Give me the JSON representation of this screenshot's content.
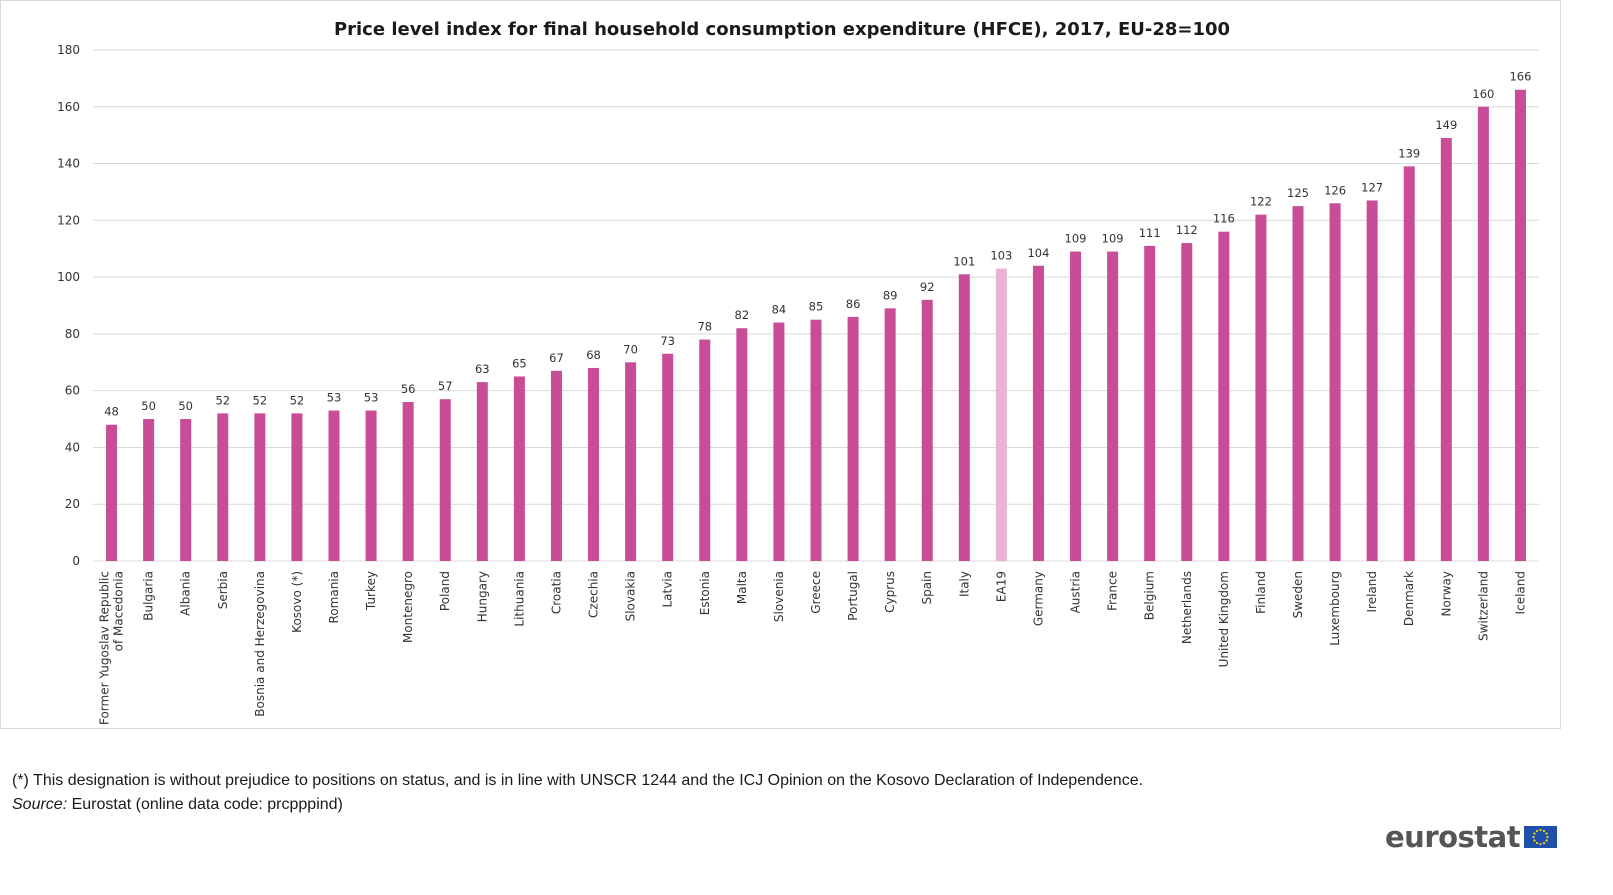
{
  "chart_data": {
    "type": "bar",
    "title": "Price level index for final household consumption expenditure (HFCE), 2017, EU-28=100",
    "xlabel": "",
    "ylabel": "",
    "ylim": [
      0,
      180
    ],
    "yticks": [
      0,
      20,
      40,
      60,
      80,
      100,
      120,
      140,
      160,
      180
    ],
    "grid": true,
    "categories": [
      [
        "Former Yugoslav Republic",
        "of Macedonia"
      ],
      [
        "Bulgaria"
      ],
      [
        "Albania"
      ],
      [
        "Serbia"
      ],
      [
        "Bosnia and Herzegovina"
      ],
      [
        "Kosovo (*)"
      ],
      [
        "Romania"
      ],
      [
        "Turkey"
      ],
      [
        "Montenegro"
      ],
      [
        "Poland"
      ],
      [
        "Hungary"
      ],
      [
        "Lithuania"
      ],
      [
        "Croatia"
      ],
      [
        "Czechia"
      ],
      [
        "Slovakia"
      ],
      [
        "Latvia"
      ],
      [
        "Estonia"
      ],
      [
        "Malta"
      ],
      [
        "Slovenia"
      ],
      [
        "Greece"
      ],
      [
        "Portugal"
      ],
      [
        "Cyprus"
      ],
      [
        "Spain"
      ],
      [
        "Italy"
      ],
      [
        "EA19"
      ],
      [
        "Germany"
      ],
      [
        "Austria"
      ],
      [
        "France"
      ],
      [
        "Belgium"
      ],
      [
        "Netherlands"
      ],
      [
        "United Kingdom"
      ],
      [
        "Finland"
      ],
      [
        "Sweden"
      ],
      [
        "Luxembourg"
      ],
      [
        "Ireland"
      ],
      [
        "Denmark"
      ],
      [
        "Norway"
      ],
      [
        "Switzerland"
      ],
      [
        "Iceland"
      ]
    ],
    "values": [
      48,
      50,
      50,
      52,
      52,
      52,
      53,
      53,
      56,
      57,
      63,
      65,
      67,
      68,
      70,
      73,
      78,
      82,
      84,
      85,
      86,
      89,
      92,
      101,
      103,
      104,
      109,
      109,
      111,
      112,
      116,
      122,
      125,
      126,
      127,
      139,
      149,
      160,
      166
    ],
    "data_labels": [
      "48",
      "50",
      "50",
      "52",
      "52",
      "52",
      "53",
      "53",
      "56",
      "57",
      "63",
      "65",
      "67",
      "68",
      "70",
      "73",
      "78",
      "82",
      "84",
      "85",
      "86",
      "89",
      "92",
      "101",
      "103",
      "104",
      "109",
      "109",
      "111",
      "112",
      "116",
      "122",
      "125",
      "126",
      "127",
      "139",
      "149",
      "160",
      "166"
    ],
    "highlight_index": 24,
    "colors": {
      "bar": "#c94c96",
      "highlight": "#e8b4d5",
      "grid": "#d9d9d9"
    }
  },
  "footnote": "(*) This designation is without prejudice to positions on status, and is in line with UNSCR 1244 and the ICJ Opinion on the Kosovo Declaration of Independence.",
  "source": {
    "label": "Source:",
    "text": "Eurostat (online data code: prcpppind)"
  },
  "brand": {
    "name": "eurostat",
    "flag_icon": "eu-flag-icon",
    "flag_colors": {
      "field": "#1f4fa8",
      "stars": "#ffdd00"
    }
  }
}
